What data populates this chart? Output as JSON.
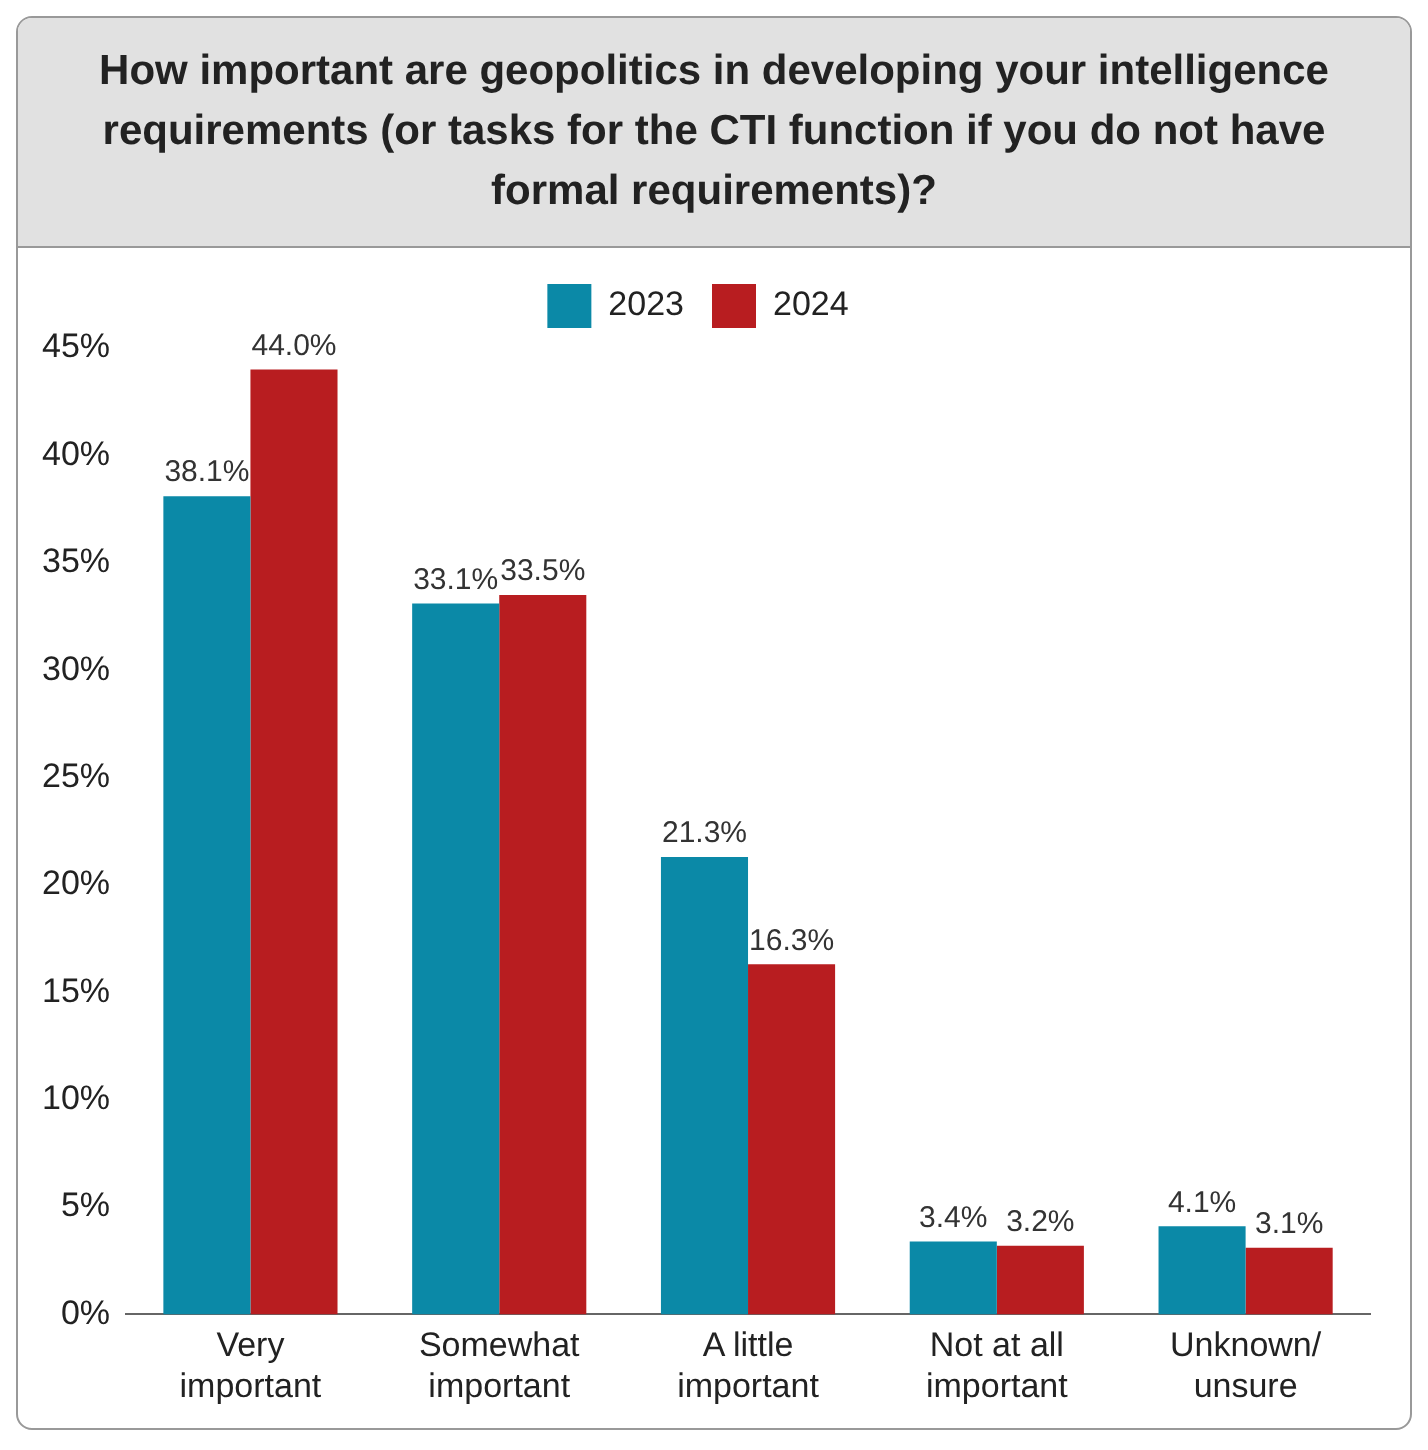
{
  "chart_data": {
    "type": "bar",
    "title": "How important are geopolitics in developing your intelligence requirements (or tasks for the CTI function if you do not have formal requirements)?",
    "categories": [
      "Very\nimportant",
      "Somewhat\nimportant",
      "A little\nimportant",
      "Not at all\nimportant",
      "Unknown/\nunsure"
    ],
    "series": [
      {
        "name": "2023",
        "color": "#0b89a7",
        "values": [
          38.1,
          33.1,
          21.3,
          3.4,
          4.1
        ],
        "value_labels": [
          "38.1%",
          "33.1%",
          "21.3%",
          "3.4%",
          "4.1%"
        ]
      },
      {
        "name": "2024",
        "color": "#b81d20",
        "values": [
          44.0,
          33.5,
          16.3,
          3.2,
          3.1
        ],
        "value_labels": [
          "44.0%",
          "33.5%",
          "16.3%",
          "3.2%",
          "3.1%"
        ]
      }
    ],
    "ylim": [
      0,
      45
    ],
    "yticks": [
      {
        "value": 0,
        "label": "0%"
      },
      {
        "value": 5,
        "label": "5%"
      },
      {
        "value": 10,
        "label": "10%"
      },
      {
        "value": 15,
        "label": "15%"
      },
      {
        "value": 20,
        "label": "20%"
      },
      {
        "value": 25,
        "label": "25%"
      },
      {
        "value": 30,
        "label": "30%"
      },
      {
        "value": 35,
        "label": "35%"
      },
      {
        "value": 40,
        "label": "40%"
      },
      {
        "value": 45,
        "label": "45%"
      }
    ],
    "grid": false,
    "legend": "top"
  }
}
